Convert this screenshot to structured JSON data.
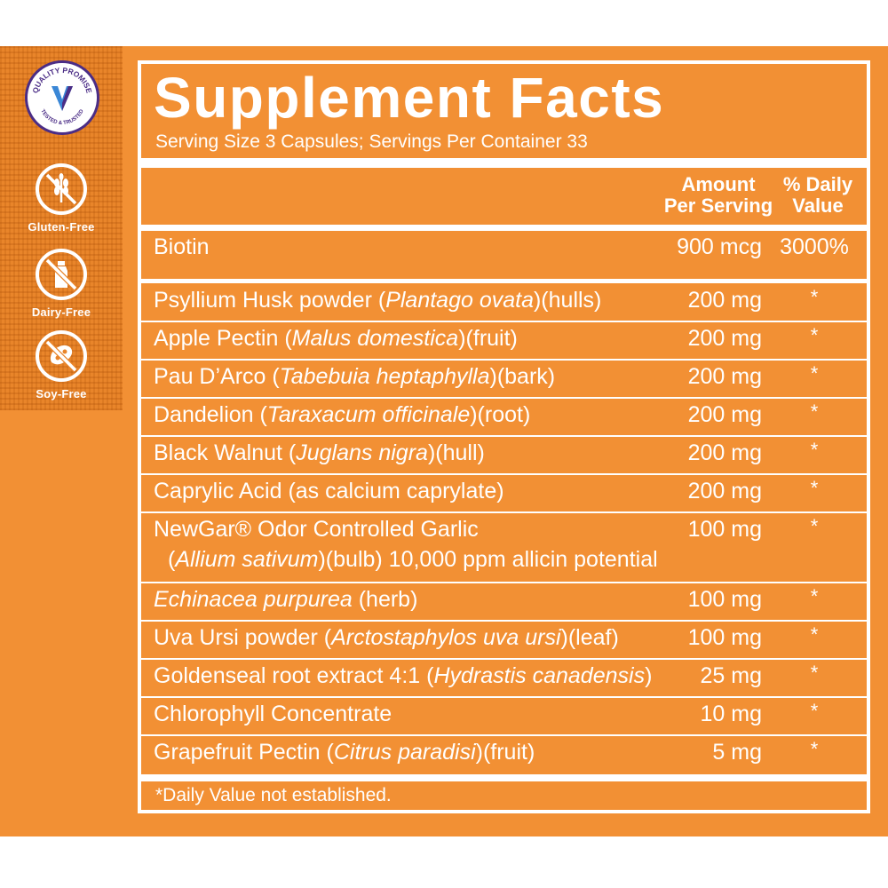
{
  "badges": {
    "quality": {
      "top": "QUALITY PROMISE",
      "bottom": "TESTED & TRUSTED",
      "mark": "V"
    },
    "claims": [
      {
        "label": "Gluten-Free",
        "icon": "wheat-crossed-icon"
      },
      {
        "label": "Dairy-Free",
        "icon": "milk-bottle-crossed-icon"
      },
      {
        "label": "Soy-Free",
        "icon": "soybean-crossed-icon"
      }
    ]
  },
  "facts": {
    "title": "Supplement Facts",
    "serving": "Serving Size 3 Capsules; Servings Per Container 33",
    "headers": {
      "amount_1": "Amount",
      "amount_2": "Per Serving",
      "dv_1": "% Daily",
      "dv_2": "Value"
    },
    "rows": [
      {
        "pre": "Biotin",
        "italic": "",
        "post": "",
        "amount": "900 mcg",
        "dv": "3000%"
      },
      {
        "pre": "Psyllium Husk powder (",
        "italic": "Plantago ovata",
        "post": ")(hulls)",
        "amount": "200 mg",
        "dv": "*"
      },
      {
        "pre": "Apple Pectin (",
        "italic": "Malus domestica",
        "post": ")(fruit)",
        "amount": "200 mg",
        "dv": "*"
      },
      {
        "pre": "Pau D’Arco (",
        "italic": "Tabebuia heptaphylla",
        "post": ")(bark)",
        "amount": "200 mg",
        "dv": "*"
      },
      {
        "pre": "Dandelion (",
        "italic": "Taraxacum officinale",
        "post": ")(root)",
        "amount": "200 mg",
        "dv": "*"
      },
      {
        "pre": "Black Walnut (",
        "italic": "Juglans nigra",
        "post": ")(hull)",
        "amount": "200 mg",
        "dv": "*"
      },
      {
        "pre": "Caprylic Acid (as calcium caprylate)",
        "italic": "",
        "post": "",
        "amount": "200 mg",
        "dv": "*"
      },
      {
        "pre": "NewGar® Odor Controlled Garlic",
        "italic": "",
        "post": "",
        "amount": "100 mg",
        "dv": "*",
        "line2_pre": "(",
        "line2_italic": "Allium sativum",
        "line2_post": ")(bulb) 10,000 ppm allicin potential"
      },
      {
        "pre": "",
        "italic": "Echinacea purpurea",
        "post": " (herb)",
        "amount": "100 mg",
        "dv": "*"
      },
      {
        "pre": "Uva Ursi powder (",
        "italic": "Arctostaphylos uva ursi",
        "post": ")(leaf)",
        "amount": "100 mg",
        "dv": "*"
      },
      {
        "pre": "Goldenseal root extract 4:1 (",
        "italic": "Hydrastis canadensis",
        "post": ")",
        "amount": "25 mg",
        "dv": "*"
      },
      {
        "pre": "Chlorophyll Concentrate",
        "italic": "",
        "post": "",
        "amount": "10 mg",
        "dv": "*"
      },
      {
        "pre": "Grapefruit Pectin (",
        "italic": "Citrus paradisi",
        "post": ")(fruit)",
        "amount": "5 mg",
        "dv": "*"
      }
    ],
    "footnote": "*Daily Value not established."
  }
}
